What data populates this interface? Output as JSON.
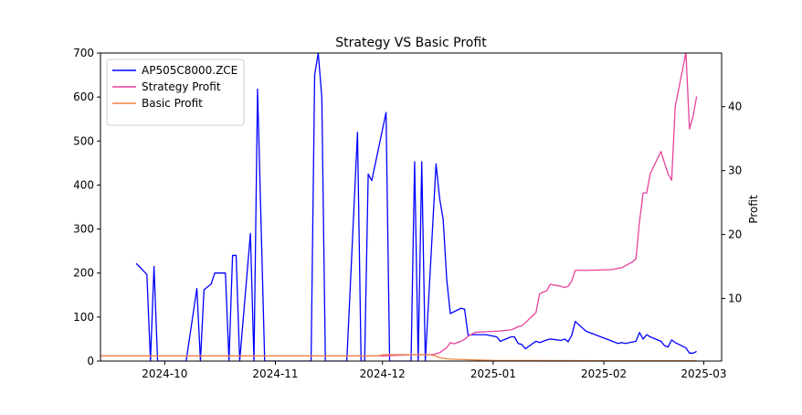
{
  "chart_data": {
    "type": "line",
    "title": "Strategy VS Basic Profit",
    "xlabel": "",
    "ylabel_left": "",
    "ylabel_right": "Profit",
    "x_axis_type": "date",
    "x_range": [
      "2024-09-13",
      "2025-03-06"
    ],
    "x_ticks": [
      {
        "date": "2024-10-01",
        "label": "2024-10"
      },
      {
        "date": "2024-11-01",
        "label": "2024-11"
      },
      {
        "date": "2024-12-01",
        "label": "2024-12"
      },
      {
        "date": "2025-01-01",
        "label": "2025-01"
      },
      {
        "date": "2025-02-01",
        "label": "2025-02"
      },
      {
        "date": "2025-03-01",
        "label": "2025-03"
      }
    ],
    "y_left_range": [
      0,
      700
    ],
    "y_left_ticks": [
      0,
      100,
      200,
      300,
      400,
      500,
      600,
      700
    ],
    "y_right_range": [
      0.2,
      48.4
    ],
    "y_right_ticks": [
      10,
      20,
      30,
      40
    ],
    "grid": false,
    "legend_position": "upper-left",
    "series": [
      {
        "name": "AP505C8000.ZCE",
        "axis": "left",
        "color": "#0000ff",
        "x": [
          "2024-09-23",
          "2024-09-26",
          "2024-09-27",
          "2024-09-28",
          "2024-09-29",
          "2024-10-07",
          "2024-10-10",
          "2024-10-11",
          "2024-10-12",
          "2024-10-14",
          "2024-10-15",
          "2024-10-18",
          "2024-10-19",
          "2024-10-20",
          "2024-10-21",
          "2024-10-22",
          "2024-10-25",
          "2024-10-26",
          "2024-10-27",
          "2024-10-29",
          "2024-10-30",
          "2024-10-31",
          "2024-11-01",
          "2024-11-05",
          "2024-11-11",
          "2024-11-12",
          "2024-11-13",
          "2024-11-14",
          "2024-11-15",
          "2024-11-21",
          "2024-11-24",
          "2024-11-25",
          "2024-11-26",
          "2024-11-27",
          "2024-11-28",
          "2024-12-02",
          "2024-12-03",
          "2024-12-04",
          "2024-12-05",
          "2024-12-09",
          "2024-12-10",
          "2024-12-11",
          "2024-12-12",
          "2024-12-13",
          "2024-12-16",
          "2024-12-17",
          "2024-12-18",
          "2024-12-19",
          "2024-12-20",
          "2024-12-23",
          "2024-12-24",
          "2024-12-25",
          "2024-12-26",
          "2024-12-30",
          "2025-01-02",
          "2025-01-03",
          "2025-01-06",
          "2025-01-07",
          "2025-01-08",
          "2025-01-09",
          "2025-01-10",
          "2025-01-13",
          "2025-01-14",
          "2025-01-15",
          "2025-01-16",
          "2025-01-17",
          "2025-01-20",
          "2025-01-21",
          "2025-01-22",
          "2025-01-23",
          "2025-01-24",
          "2025-01-27",
          "2025-02-05",
          "2025-02-06",
          "2025-02-07",
          "2025-02-10",
          "2025-02-11",
          "2025-02-12",
          "2025-02-13",
          "2025-02-14",
          "2025-02-17",
          "2025-02-18",
          "2025-02-19",
          "2025-02-20",
          "2025-02-21",
          "2025-02-24",
          "2025-02-25",
          "2025-02-26",
          "2025-02-27"
        ],
        "y": [
          222,
          197,
          0,
          215,
          0,
          0,
          165,
          0,
          162,
          175,
          200,
          200,
          0,
          240,
          240,
          0,
          290,
          0,
          618,
          0,
          0,
          0,
          0,
          0,
          0,
          650,
          700,
          600,
          0,
          0,
          520,
          0,
          0,
          425,
          410,
          565,
          0,
          0,
          0,
          0,
          453,
          0,
          453,
          0,
          448,
          370,
          322,
          185,
          108,
          120,
          118,
          58,
          60,
          60,
          55,
          45,
          55,
          55,
          40,
          38,
          28,
          45,
          42,
          45,
          48,
          50,
          47,
          50,
          44,
          58,
          90,
          68,
          40,
          42,
          40,
          45,
          65,
          50,
          60,
          55,
          45,
          35,
          32,
          48,
          42,
          30,
          18,
          18,
          22
        ]
      },
      {
        "name": "Strategy Profit",
        "axis": "right",
        "color": "#e8419c",
        "x": [
          "2024-09-13",
          "2024-09-20",
          "2024-10-01",
          "2024-11-01",
          "2024-12-01",
          "2024-12-10",
          "2024-12-15",
          "2024-12-17",
          "2024-12-19",
          "2024-12-20",
          "2024-12-21",
          "2024-12-23",
          "2024-12-24",
          "2024-12-25",
          "2024-12-26",
          "2024-12-27",
          "2024-12-30",
          "2025-01-03",
          "2025-01-06",
          "2025-01-07",
          "2025-01-08",
          "2025-01-09",
          "2025-01-10",
          "2025-01-13",
          "2025-01-14",
          "2025-01-15",
          "2025-01-16",
          "2025-01-17",
          "2025-01-20",
          "2025-01-21",
          "2025-01-22",
          "2025-01-23",
          "2025-01-24",
          "2025-01-27",
          "2025-02-03",
          "2025-02-06",
          "2025-02-07",
          "2025-02-09",
          "2025-02-10",
          "2025-02-11",
          "2025-02-12",
          "2025-02-13",
          "2025-02-14",
          "2025-02-17",
          "2025-02-18",
          "2025-02-19",
          "2025-02-20",
          "2025-02-21",
          "2025-02-24",
          "2025-02-25",
          "2025-02-26",
          "2025-02-27"
        ],
        "y": [
          1.0,
          1.0,
          1.0,
          1.0,
          1.0,
          1.2,
          1.2,
          1.5,
          2.3,
          3.1,
          2.9,
          3.3,
          3.6,
          4.1,
          4.4,
          4.7,
          4.8,
          4.9,
          5.1,
          5.3,
          5.6,
          5.7,
          6.2,
          7.8,
          10.7,
          11.0,
          11.2,
          12.2,
          11.9,
          11.7,
          11.9,
          12.7,
          14.4,
          14.4,
          14.5,
          14.8,
          15.1,
          15.7,
          16.2,
          22.0,
          26.5,
          26.5,
          29.5,
          33.0,
          31.2,
          29.5,
          28.5,
          40.0,
          48.5,
          36.5,
          38.5,
          41.6
        ]
      },
      {
        "name": "Basic Profit",
        "axis": "right",
        "color": "#ee8540",
        "x": [
          "2024-09-13",
          "2024-09-20",
          "2024-10-01",
          "2024-11-01",
          "2024-11-30",
          "2024-12-01",
          "2024-12-05",
          "2024-12-10",
          "2024-12-14",
          "2024-12-16",
          "2024-12-17",
          "2024-12-20",
          "2025-01-01",
          "2025-02-01",
          "2025-02-27"
        ],
        "y": [
          1.0,
          1.0,
          1.0,
          1.0,
          1.0,
          1.2,
          1.2,
          1.2,
          1.2,
          1.0,
          0.7,
          0.5,
          0.3,
          0.25,
          0.25
        ]
      }
    ]
  }
}
